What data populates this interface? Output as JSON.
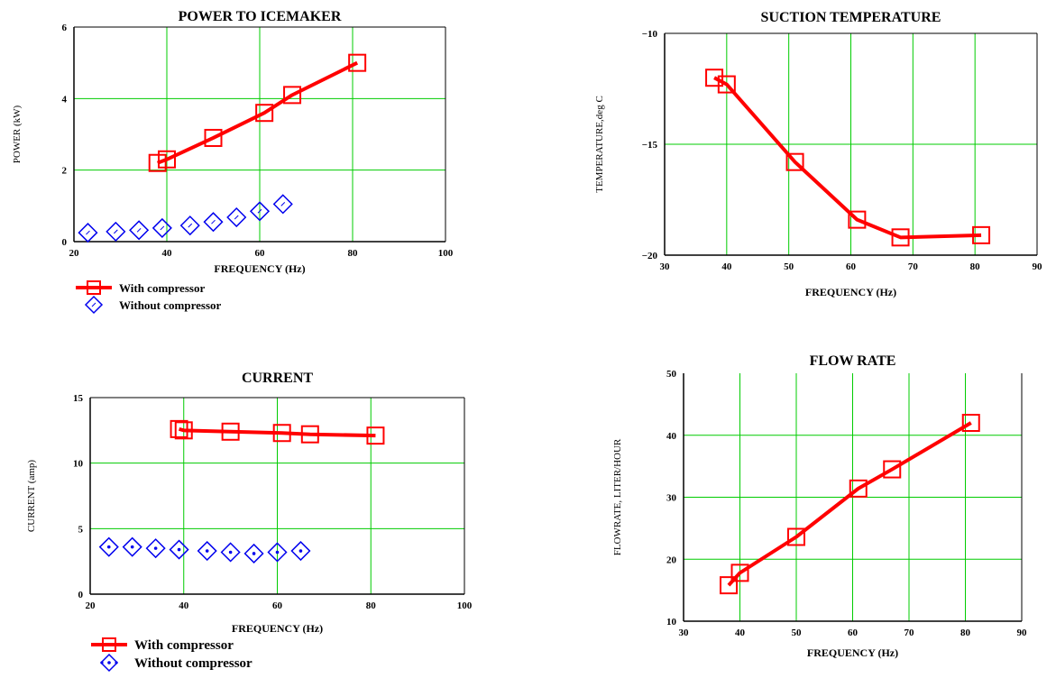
{
  "colors": {
    "with": "#ff0000",
    "without": "#0000ee",
    "grid": "#00cc00",
    "axis": "#000000"
  },
  "chart_data": [
    {
      "id": "power",
      "type": "line",
      "title": "POWER TO ICEMAKER",
      "xlabel": "FREQUENCY (Hz)",
      "ylabel": "POWER (kW)",
      "xlim": [
        20,
        100
      ],
      "ylim": [
        0,
        6
      ],
      "xticks": [
        20,
        40,
        60,
        80,
        100
      ],
      "yticks": [
        0,
        2,
        4,
        6
      ],
      "grid": true,
      "legend_position": "below",
      "series": [
        {
          "name": "With compressor",
          "marker": "square",
          "line": true,
          "x": [
            38,
            40,
            50,
            61,
            67,
            81
          ],
          "y": [
            2.2,
            2.3,
            2.9,
            3.6,
            4.1,
            5.0
          ]
        },
        {
          "name": "Without compressor",
          "marker": "diamond",
          "line": false,
          "x": [
            23,
            29,
            34,
            39,
            45,
            50,
            55,
            60,
            65
          ],
          "y": [
            0.25,
            0.28,
            0.32,
            0.38,
            0.45,
            0.55,
            0.68,
            0.85,
            1.05
          ]
        }
      ]
    },
    {
      "id": "suction",
      "type": "line",
      "title": "SUCTION TEMPERATURE",
      "xlabel": "FREQUENCY (Hz)",
      "ylabel": "TEMPERATURE,deg C",
      "xlim": [
        30,
        90
      ],
      "ylim": [
        -20,
        -10
      ],
      "xticks": [
        30,
        40,
        50,
        60,
        70,
        80,
        90
      ],
      "yticks": [
        -20,
        -15,
        -10
      ],
      "ytick_labels": [
        "−20",
        "−15",
        "−10"
      ],
      "grid": true,
      "series": [
        {
          "name": "",
          "marker": "square",
          "line": true,
          "x": [
            38,
            40,
            51,
            61,
            68,
            81
          ],
          "y": [
            -12.0,
            -12.3,
            -15.8,
            -18.4,
            -19.2,
            -19.1
          ]
        }
      ]
    },
    {
      "id": "current",
      "type": "line",
      "title": "CURRENT",
      "xlabel": "FREQUENCY (Hz)",
      "ylabel": "CURRENT (amp)",
      "xlim": [
        20,
        100
      ],
      "ylim": [
        0,
        15
      ],
      "xticks": [
        20,
        40,
        60,
        80,
        100
      ],
      "yticks": [
        0,
        5,
        10,
        15
      ],
      "grid": true,
      "legend_position": "below",
      "series": [
        {
          "name": "With compressor",
          "marker": "square",
          "line": true,
          "x": [
            39,
            40,
            50,
            61,
            67,
            81
          ],
          "y": [
            12.6,
            12.5,
            12.4,
            12.3,
            12.2,
            12.1
          ]
        },
        {
          "name": "Without compressor",
          "marker": "diamond",
          "line": false,
          "x": [
            24,
            29,
            34,
            39,
            45,
            50,
            55,
            60,
            65
          ],
          "y": [
            3.6,
            3.6,
            3.5,
            3.4,
            3.3,
            3.2,
            3.1,
            3.2,
            3.3
          ]
        }
      ]
    },
    {
      "id": "flow",
      "type": "line",
      "title": "FLOW RATE",
      "xlabel": "FREQUENCY (Hz)",
      "ylabel": "FLOWRATE, LITER/HOUR",
      "xlim": [
        30,
        90
      ],
      "ylim": [
        10,
        50
      ],
      "xticks": [
        30,
        40,
        50,
        60,
        70,
        80,
        90
      ],
      "yticks": [
        10,
        20,
        30,
        40,
        50
      ],
      "grid": true,
      "series": [
        {
          "name": "",
          "marker": "square",
          "line": true,
          "x": [
            38,
            40,
            50,
            61,
            67,
            81
          ],
          "y": [
            15.8,
            17.8,
            23.6,
            31.4,
            34.5,
            42.0
          ]
        }
      ]
    }
  ]
}
